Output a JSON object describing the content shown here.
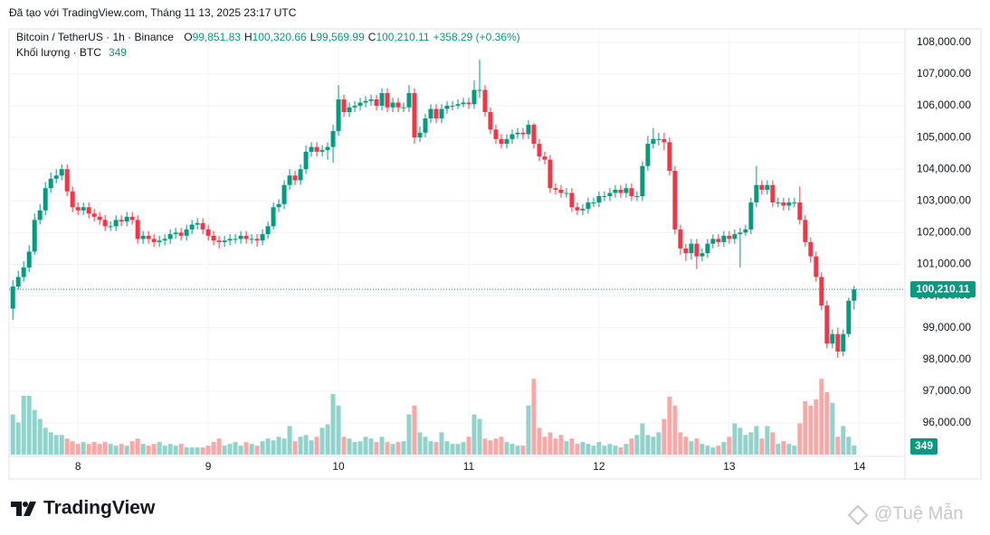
{
  "caption": "Đã tạo với TradingView.com, Tháng 11 13, 2025 23:17 UTC",
  "chart_data": {
    "type": "candlestick",
    "symbol": "Bitcoin / TetherUS · 1h · Binance",
    "ohlc_legend": [
      {
        "key": "O",
        "value": "99,851.83"
      },
      {
        "key": "H",
        "value": "100,320.66"
      },
      {
        "key": "L",
        "value": "99,569.99"
      },
      {
        "key": "C",
        "value": "100,210.11"
      }
    ],
    "change": "+358.29 (+0.36%)",
    "volume_title": "Khối lượng · BTC",
    "last_close_label": "100,210.11",
    "up_color": "#089981",
    "down_color": "#f23645",
    "volume_up_color": "#92d2cc",
    "volume_down_color": "#f7a9a7",
    "open": [
      99600,
      100300,
      100600,
      100900,
      101400,
      102400,
      102700,
      103400,
      103700,
      103800,
      104000,
      103300,
      102800,
      102700,
      102800,
      102600,
      102500,
      102400,
      102200,
      102200,
      102400,
      102350,
      102500,
      102400,
      101800,
      101900,
      101800,
      101700,
      101750,
      101800,
      101950,
      102000,
      101900,
      102100,
      102250,
      102300,
      102100,
      101900,
      101750,
      101700,
      101750,
      101800,
      101800,
      101900,
      101800,
      101800,
      101750,
      101950,
      102200,
      102800,
      102900,
      103500,
      103800,
      103650,
      104000,
      104550,
      104700,
      104550,
      104600,
      104700,
      105200,
      106200,
      105800,
      105950,
      106000,
      106100,
      106150,
      106200,
      106000,
      106400,
      105950,
      106100,
      105950,
      105950,
      106400,
      105000,
      105150,
      105600,
      105900,
      105600,
      105900,
      106000,
      106000,
      106050,
      106100,
      106050,
      106500,
      106500,
      105800,
      105250,
      104950,
      104800,
      104950,
      105100,
      105150,
      105100,
      105400,
      104800,
      104400,
      104300,
      103400,
      103350,
      103250,
      103250,
      102800,
      102700,
      102750,
      102950,
      102950,
      103150,
      103150,
      103250,
      103350,
      103250,
      103400,
      103150,
      103150,
      104100,
      104800,
      104950,
      104950,
      104850,
      103950,
      102100,
      101500,
      101350,
      101650,
      101250,
      101350,
      101650,
      101800,
      101700,
      101900,
      101800,
      101950,
      102000,
      102100,
      102950,
      103500,
      103350,
      103500,
      102950,
      102950,
      102850,
      102950,
      102950,
      102400,
      101700,
      101250,
      100600,
      99700,
      98500,
      98800,
      98250,
      98800,
      99851.83
    ],
    "high": [
      100500,
      100800,
      101100,
      101600,
      102600,
      102900,
      103600,
      103900,
      104000,
      104150,
      104150,
      103450,
      102950,
      102950,
      102950,
      102750,
      102650,
      102550,
      102350,
      102550,
      102550,
      102650,
      102650,
      102550,
      102050,
      102050,
      101950,
      101900,
      101950,
      102100,
      102150,
      102150,
      102250,
      102400,
      102450,
      102450,
      102250,
      102050,
      101900,
      101900,
      101950,
      101950,
      102050,
      102050,
      101950,
      101950,
      102100,
      102350,
      102950,
      103050,
      103650,
      104000,
      103950,
      104150,
      104750,
      104850,
      104850,
      104750,
      104850,
      105400,
      106650,
      106350,
      106100,
      106150,
      106250,
      106300,
      106350,
      106350,
      106550,
      106550,
      106250,
      106250,
      106100,
      106650,
      106550,
      105350,
      105750,
      106050,
      106050,
      106050,
      106150,
      106150,
      106200,
      106250,
      106250,
      106800,
      107450,
      106650,
      105950,
      105400,
      105100,
      105100,
      105250,
      105300,
      105300,
      105550,
      105450,
      104950,
      104550,
      104450,
      103550,
      103500,
      103400,
      103400,
      102950,
      102900,
      103100,
      103100,
      103300,
      103300,
      103400,
      103500,
      103500,
      103550,
      103550,
      103300,
      104250,
      105050,
      105300,
      105150,
      105150,
      105000,
      104100,
      102250,
      101650,
      101800,
      101800,
      101500,
      101800,
      101950,
      101950,
      102050,
      102050,
      102100,
      102150,
      102250,
      103100,
      104100,
      103650,
      103650,
      103650,
      103100,
      103100,
      103100,
      103100,
      103450,
      102550,
      101850,
      101400,
      100750,
      99850,
      98950,
      99000,
      98950,
      99950,
      100320.66
    ],
    "low": [
      99250,
      100200,
      100450,
      100750,
      101300,
      102250,
      102550,
      103250,
      103550,
      103650,
      103150,
      102650,
      102550,
      102550,
      102450,
      102350,
      102250,
      102050,
      102050,
      102050,
      102200,
      102200,
      102250,
      101650,
      101650,
      101650,
      101550,
      101550,
      101600,
      101650,
      101800,
      101750,
      101750,
      101950,
      102100,
      101950,
      101750,
      101600,
      101500,
      101550,
      101600,
      101650,
      101650,
      101650,
      101650,
      101550,
      101600,
      101800,
      102100,
      102650,
      102750,
      103350,
      103500,
      103500,
      103850,
      104400,
      104400,
      104400,
      104300,
      104200,
      105050,
      105650,
      105650,
      105800,
      105850,
      105950,
      106000,
      105850,
      105850,
      105800,
      105800,
      105800,
      105800,
      105800,
      104800,
      104850,
      105000,
      105450,
      105450,
      105450,
      105750,
      105850,
      105900,
      105950,
      105900,
      105900,
      106250,
      105650,
      105100,
      104800,
      104650,
      104650,
      104800,
      104950,
      104950,
      104950,
      104650,
      104250,
      104150,
      103250,
      103200,
      103100,
      103100,
      102650,
      102550,
      102550,
      102600,
      102800,
      102800,
      103000,
      103000,
      103100,
      103100,
      103100,
      103000,
      103000,
      103000,
      103950,
      104650,
      104750,
      104600,
      103800,
      101950,
      101300,
      101100,
      101150,
      100850,
      101100,
      101200,
      101500,
      101550,
      101550,
      101650,
      101650,
      100900,
      101900,
      101950,
      102800,
      103200,
      103200,
      102800,
      102800,
      102700,
      102700,
      102800,
      102250,
      101550,
      101050,
      100450,
      99550,
      98350,
      98350,
      98050,
      98100,
      98700,
      99569.99
    ],
    "close": [
      100300,
      100600,
      100900,
      101400,
      102400,
      102700,
      103400,
      103700,
      103800,
      104000,
      103300,
      102800,
      102700,
      102800,
      102600,
      102500,
      102400,
      102200,
      102200,
      102400,
      102350,
      102500,
      102400,
      101800,
      101900,
      101800,
      101700,
      101750,
      101800,
      101950,
      102000,
      101900,
      102100,
      102250,
      102300,
      102100,
      101900,
      101750,
      101700,
      101750,
      101800,
      101800,
      101900,
      101800,
      101800,
      101750,
      101950,
      102200,
      102800,
      102900,
      103500,
      103800,
      103650,
      104000,
      104550,
      104700,
      104550,
      104600,
      104700,
      105200,
      106200,
      105800,
      105950,
      106000,
      106100,
      106150,
      106200,
      106000,
      106400,
      105950,
      106100,
      105950,
      105950,
      106400,
      105000,
      105150,
      105600,
      105900,
      105600,
      105900,
      106000,
      106000,
      106050,
      106100,
      106050,
      106500,
      106500,
      105800,
      105250,
      104950,
      104800,
      104950,
      105100,
      105150,
      105100,
      105400,
      104800,
      104400,
      104300,
      103400,
      103350,
      103250,
      103250,
      102800,
      102700,
      102750,
      102950,
      102950,
      103150,
      103150,
      103250,
      103350,
      103250,
      103400,
      103150,
      103150,
      104100,
      104800,
      104950,
      104950,
      104850,
      103950,
      102100,
      101500,
      101350,
      101650,
      101250,
      101350,
      101650,
      101800,
      101700,
      101900,
      101800,
      101950,
      102000,
      102100,
      102950,
      103500,
      103350,
      103500,
      102950,
      102950,
      102850,
      102950,
      102950,
      102400,
      101700,
      101250,
      100600,
      99700,
      98500,
      98800,
      98250,
      98800,
      99851.83,
      100210.11
    ],
    "volume": [
      1530,
      1224,
      2244,
      2244,
      1700,
      1360,
      1020,
      850,
      748,
      748,
      612,
      510,
      408,
      476,
      408,
      476,
      408,
      476,
      408,
      340,
      408,
      340,
      510,
      612,
      408,
      340,
      408,
      476,
      340,
      408,
      340,
      408,
      272,
      272,
      272,
      272,
      340,
      476,
      612,
      340,
      408,
      476,
      340,
      476,
      408,
      340,
      510,
      612,
      544,
      680,
      612,
      1088,
      510,
      680,
      748,
      544,
      680,
      1020,
      1156,
      2312,
      1870,
      680,
      612,
      476,
      510,
      680,
      612,
      476,
      680,
      476,
      408,
      476,
      510,
      1530,
      1870,
      850,
      680,
      510,
      476,
      850,
      510,
      408,
      408,
      476,
      680,
      1530,
      1360,
      612,
      544,
      612,
      680,
      476,
      408,
      340,
      340,
      1870,
      2890,
      1020,
      680,
      850,
      612,
      748,
      510,
      612,
      408,
      476,
      408,
      340,
      476,
      340,
      408,
      340,
      272,
      408,
      612,
      748,
      1190,
      748,
      680,
      850,
      1360,
      2210,
      1870,
      850,
      680,
      510,
      612,
      408,
      340,
      272,
      340,
      476,
      680,
      1190,
      1020,
      748,
      850,
      1088,
      612,
      1088,
      850,
      408,
      510,
      408,
      340,
      1190,
      2040,
      1870,
      2108,
      2890,
      2380,
      1972,
      680,
      1088,
      680,
      349
    ],
    "xlim": [
      -0.7,
      162.7
    ],
    "xticks": [
      {
        "value": 12,
        "label": "8"
      },
      {
        "value": 36,
        "label": "9"
      },
      {
        "value": 60,
        "label": "10"
      },
      {
        "value": 84,
        "label": "11"
      },
      {
        "value": 108,
        "label": "12"
      },
      {
        "value": 132,
        "label": "13"
      },
      {
        "value": 156,
        "label": "14"
      }
    ],
    "ylim": [
      95000,
      109050
    ],
    "yticks": [
      {
        "value": 96000,
        "label": "96,000.00"
      },
      {
        "value": 97000,
        "label": "97,000.00"
      },
      {
        "value": 98000,
        "label": "98,000.00"
      },
      {
        "value": 99000,
        "label": "99,000.00"
      },
      {
        "value": 100000,
        "label": "100,000.00"
      },
      {
        "value": 101000,
        "label": "101,000.00"
      },
      {
        "value": 102000,
        "label": "102,000.00"
      },
      {
        "value": 103000,
        "label": "103,000.00"
      },
      {
        "value": 104000,
        "label": "104,000.00"
      },
      {
        "value": 105000,
        "label": "105,000.00"
      },
      {
        "value": 106000,
        "label": "106,000.00"
      },
      {
        "value": 107000,
        "label": "107,000.00"
      },
      {
        "value": 108000,
        "label": "108,000.00"
      }
    ],
    "y2lim": [
      0,
      17000
    ],
    "grid": true
  },
  "brand": "TradingView",
  "watermark": "@Tuệ Mẫn"
}
